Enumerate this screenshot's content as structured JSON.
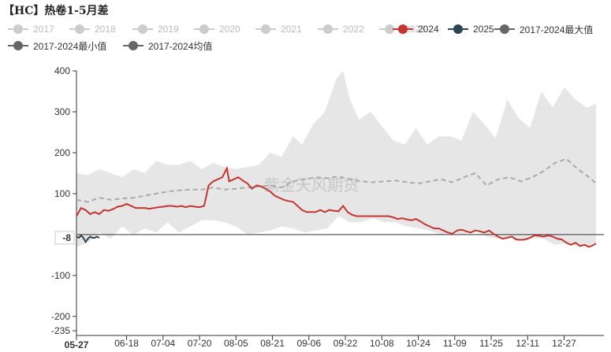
{
  "title": "【HC】热卷1-5月差",
  "watermark": "紫金天风期货",
  "legend": [
    {
      "label": "2017",
      "color": "#cccccc",
      "type": "dot-line",
      "active": false
    },
    {
      "label": "2018",
      "color": "#cccccc",
      "type": "dot-line",
      "active": false
    },
    {
      "label": "2019",
      "color": "#cccccc",
      "type": "dot-line",
      "active": false
    },
    {
      "label": "2020",
      "color": "#cccccc",
      "type": "dot-line",
      "active": false
    },
    {
      "label": "2021",
      "color": "#cccccc",
      "type": "dot-line",
      "active": false
    },
    {
      "label": "2022",
      "color": "#cccccc",
      "type": "dot-line",
      "active": false
    },
    {
      "label": "2023",
      "color": "#cccccc",
      "type": "dot-line",
      "active": false
    },
    {
      "label": "2024",
      "color": "#c23531",
      "type": "dot-line",
      "active": true
    },
    {
      "label": "2025",
      "color": "#2f4554",
      "type": "dot-line",
      "active": true
    },
    {
      "label": "2017-2024最大值",
      "color": "#666666",
      "type": "dot-line",
      "active": true
    },
    {
      "label": "2017-2024最小值",
      "color": "#666666",
      "type": "dot-line",
      "active": true
    },
    {
      "label": "2017-2024均值",
      "color": "#666666",
      "type": "dot-line",
      "active": true
    }
  ],
  "chart_data": {
    "type": "line",
    "ylim": [
      -235,
      400
    ],
    "y_ticks": [
      400,
      300,
      200,
      100,
      -100,
      -200,
      -235
    ],
    "x_tick_labels": [
      "05-27",
      "06-18",
      "07-04",
      "07-20",
      "08-05",
      "08-21",
      "09-06",
      "09-22",
      "10-08",
      "10-24",
      "11-09",
      "11-25",
      "12-11",
      "12-27"
    ],
    "current_label": "-8",
    "current_value": -8,
    "x_start": "05-27",
    "x_end": "01-10",
    "colors": {
      "y2024": "#c23531",
      "y2025": "#2f4554",
      "mean": "#aaaaaa",
      "band": "#e6e6e6",
      "zero": "#333333"
    },
    "series": [
      {
        "name": "2024",
        "points": [
          [
            "05-27",
            45
          ],
          [
            "05-29",
            65
          ],
          [
            "05-31",
            60
          ],
          [
            "06-02",
            50
          ],
          [
            "06-04",
            55
          ],
          [
            "06-06",
            50
          ],
          [
            "06-08",
            60
          ],
          [
            "06-10",
            58
          ],
          [
            "06-12",
            62
          ],
          [
            "06-14",
            68
          ],
          [
            "06-16",
            70
          ],
          [
            "06-18",
            75
          ],
          [
            "06-20",
            70
          ],
          [
            "06-22",
            65
          ],
          [
            "06-24",
            65
          ],
          [
            "06-26",
            65
          ],
          [
            "06-28",
            63
          ],
          [
            "06-30",
            65
          ],
          [
            "07-02",
            67
          ],
          [
            "07-04",
            68
          ],
          [
            "07-06",
            70
          ],
          [
            "07-08",
            70
          ],
          [
            "07-10",
            68
          ],
          [
            "07-12",
            70
          ],
          [
            "07-14",
            67
          ],
          [
            "07-16",
            70
          ],
          [
            "07-18",
            68
          ],
          [
            "07-20",
            67
          ],
          [
            "07-22",
            70
          ],
          [
            "07-24",
            120
          ],
          [
            "07-26",
            130
          ],
          [
            "07-28",
            135
          ],
          [
            "07-30",
            140
          ],
          [
            "08-01",
            162
          ],
          [
            "08-02",
            130
          ],
          [
            "08-04",
            135
          ],
          [
            "08-06",
            140
          ],
          [
            "08-08",
            132
          ],
          [
            "08-10",
            125
          ],
          [
            "08-12",
            112
          ],
          [
            "08-14",
            120
          ],
          [
            "08-16",
            118
          ],
          [
            "08-18",
            112
          ],
          [
            "08-20",
            105
          ],
          [
            "08-22",
            95
          ],
          [
            "08-24",
            90
          ],
          [
            "08-26",
            85
          ],
          [
            "08-28",
            82
          ],
          [
            "08-30",
            80
          ],
          [
            "09-01",
            70
          ],
          [
            "09-03",
            60
          ],
          [
            "09-05",
            55
          ],
          [
            "09-07",
            55
          ],
          [
            "09-09",
            55
          ],
          [
            "09-11",
            60
          ],
          [
            "09-13",
            55
          ],
          [
            "09-15",
            60
          ],
          [
            "09-17",
            58
          ],
          [
            "09-19",
            57
          ],
          [
            "09-21",
            70
          ],
          [
            "09-23",
            55
          ],
          [
            "09-25",
            48
          ],
          [
            "09-27",
            45
          ],
          [
            "09-29",
            45
          ],
          [
            "10-01",
            45
          ],
          [
            "10-03",
            45
          ],
          [
            "10-05",
            45
          ],
          [
            "10-07",
            45
          ],
          [
            "10-09",
            45
          ],
          [
            "10-11",
            45
          ],
          [
            "10-13",
            42
          ],
          [
            "10-15",
            38
          ],
          [
            "10-17",
            40
          ],
          [
            "10-19",
            37
          ],
          [
            "10-21",
            35
          ],
          [
            "10-23",
            38
          ],
          [
            "10-25",
            32
          ],
          [
            "10-27",
            25
          ],
          [
            "10-29",
            20
          ],
          [
            "10-31",
            15
          ],
          [
            "11-02",
            15
          ],
          [
            "11-04",
            10
          ],
          [
            "11-06",
            5
          ],
          [
            "11-08",
            2
          ],
          [
            "11-10",
            10
          ],
          [
            "11-12",
            12
          ],
          [
            "11-14",
            8
          ],
          [
            "11-16",
            5
          ],
          [
            "11-18",
            10
          ],
          [
            "11-20",
            8
          ],
          [
            "11-22",
            5
          ],
          [
            "11-24",
            10
          ],
          [
            "11-26",
            2
          ],
          [
            "11-28",
            -5
          ],
          [
            "11-30",
            -10
          ],
          [
            "12-02",
            -8
          ],
          [
            "12-04",
            -5
          ],
          [
            "12-06",
            -12
          ],
          [
            "12-08",
            -13
          ],
          [
            "12-10",
            -12
          ],
          [
            "12-12",
            -8
          ],
          [
            "12-14",
            -2
          ],
          [
            "12-16",
            -3
          ],
          [
            "12-18",
            -5
          ],
          [
            "12-20",
            -2
          ],
          [
            "12-22",
            -5
          ],
          [
            "12-24",
            -10
          ],
          [
            "12-26",
            -12
          ],
          [
            "12-28",
            -20
          ],
          [
            "12-30",
            -25
          ],
          [
            "01-01",
            -20
          ],
          [
            "01-03",
            -28
          ],
          [
            "01-05",
            -25
          ],
          [
            "01-07",
            -30
          ],
          [
            "01-09",
            -25
          ],
          [
            "01-10",
            -22
          ]
        ]
      },
      {
        "name": "2025",
        "points": [
          [
            "05-27",
            -5
          ],
          [
            "05-28",
            -8
          ],
          [
            "05-29",
            -2
          ],
          [
            "05-30",
            -8
          ],
          [
            "05-31",
            -18
          ],
          [
            "06-01",
            -10
          ],
          [
            "06-02",
            -5
          ],
          [
            "06-03",
            -8
          ],
          [
            "06-04",
            -8
          ],
          [
            "06-05",
            -5
          ],
          [
            "06-06",
            -8
          ]
        ]
      },
      {
        "name": "2017-2024最大值",
        "points": [
          [
            "05-27",
            150
          ],
          [
            "06-01",
            145
          ],
          [
            "06-06",
            160
          ],
          [
            "06-11",
            150
          ],
          [
            "06-16",
            140
          ],
          [
            "06-21",
            160
          ],
          [
            "06-26",
            150
          ],
          [
            "07-01",
            180
          ],
          [
            "07-06",
            170
          ],
          [
            "07-11",
            170
          ],
          [
            "07-16",
            180
          ],
          [
            "07-21",
            160
          ],
          [
            "07-26",
            175
          ],
          [
            "07-31",
            165
          ],
          [
            "08-05",
            160
          ],
          [
            "08-10",
            165
          ],
          [
            "08-15",
            170
          ],
          [
            "08-20",
            200
          ],
          [
            "08-25",
            190
          ],
          [
            "08-30",
            240
          ],
          [
            "09-03",
            220
          ],
          [
            "09-08",
            270
          ],
          [
            "09-13",
            300
          ],
          [
            "09-18",
            380
          ],
          [
            "09-21",
            400
          ],
          [
            "09-24",
            330
          ],
          [
            "09-28",
            280
          ],
          [
            "10-03",
            300
          ],
          [
            "10-08",
            265
          ],
          [
            "10-13",
            230
          ],
          [
            "10-18",
            220
          ],
          [
            "10-23",
            260
          ],
          [
            "10-28",
            220
          ],
          [
            "11-02",
            240
          ],
          [
            "11-07",
            240
          ],
          [
            "11-12",
            230
          ],
          [
            "11-17",
            300
          ],
          [
            "11-22",
            270
          ],
          [
            "11-27",
            235
          ],
          [
            "12-02",
            330
          ],
          [
            "12-07",
            285
          ],
          [
            "12-12",
            260
          ],
          [
            "12-17",
            350
          ],
          [
            "12-22",
            310
          ],
          [
            "12-27",
            360
          ],
          [
            "01-01",
            330
          ],
          [
            "01-06",
            310
          ],
          [
            "01-10",
            320
          ]
        ]
      },
      {
        "name": "2017-2024最小值",
        "points": [
          [
            "05-27",
            -30
          ],
          [
            "06-01",
            -20
          ],
          [
            "06-06",
            5
          ],
          [
            "06-11",
            -10
          ],
          [
            "06-16",
            20
          ],
          [
            "06-21",
            0
          ],
          [
            "06-26",
            15
          ],
          [
            "07-01",
            5
          ],
          [
            "07-06",
            30
          ],
          [
            "07-11",
            5
          ],
          [
            "07-16",
            20
          ],
          [
            "07-21",
            35
          ],
          [
            "07-26",
            35
          ],
          [
            "07-31",
            30
          ],
          [
            "08-05",
            20
          ],
          [
            "08-10",
            0
          ],
          [
            "08-15",
            5
          ],
          [
            "08-20",
            10
          ],
          [
            "08-25",
            20
          ],
          [
            "08-30",
            15
          ],
          [
            "09-04",
            5
          ],
          [
            "09-09",
            10
          ],
          [
            "09-14",
            15
          ],
          [
            "09-19",
            45
          ],
          [
            "09-24",
            30
          ],
          [
            "09-29",
            30
          ],
          [
            "10-04",
            40
          ],
          [
            "10-09",
            30
          ],
          [
            "10-14",
            30
          ],
          [
            "10-19",
            20
          ],
          [
            "10-24",
            15
          ],
          [
            "10-29",
            10
          ],
          [
            "11-03",
            0
          ],
          [
            "11-08",
            5
          ],
          [
            "11-13",
            0
          ],
          [
            "11-18",
            10
          ],
          [
            "11-23",
            -5
          ],
          [
            "11-28",
            -10
          ],
          [
            "12-03",
            -5
          ],
          [
            "12-08",
            -15
          ],
          [
            "12-13",
            -10
          ],
          [
            "12-18",
            -10
          ],
          [
            "12-23",
            -25
          ],
          [
            "12-28",
            -20
          ],
          [
            "01-02",
            -30
          ],
          [
            "01-07",
            -25
          ],
          [
            "01-10",
            -20
          ]
        ]
      },
      {
        "name": "2017-2024均值",
        "points": [
          [
            "05-27",
            85
          ],
          [
            "06-01",
            80
          ],
          [
            "06-06",
            90
          ],
          [
            "06-11",
            85
          ],
          [
            "06-16",
            88
          ],
          [
            "06-21",
            90
          ],
          [
            "06-26",
            95
          ],
          [
            "07-01",
            100
          ],
          [
            "07-06",
            105
          ],
          [
            "07-11",
            108
          ],
          [
            "07-16",
            110
          ],
          [
            "07-21",
            110
          ],
          [
            "07-26",
            115
          ],
          [
            "07-31",
            110
          ],
          [
            "08-05",
            112
          ],
          [
            "08-10",
            115
          ],
          [
            "08-15",
            118
          ],
          [
            "08-20",
            120
          ],
          [
            "08-25",
            115
          ],
          [
            "08-30",
            130
          ],
          [
            "09-04",
            135
          ],
          [
            "09-09",
            140
          ],
          [
            "09-14",
            138
          ],
          [
            "09-19",
            142
          ],
          [
            "09-24",
            135
          ],
          [
            "09-29",
            130
          ],
          [
            "10-04",
            128
          ],
          [
            "10-09",
            130
          ],
          [
            "10-14",
            132
          ],
          [
            "10-19",
            128
          ],
          [
            "10-24",
            125
          ],
          [
            "10-29",
            130
          ],
          [
            "11-03",
            135
          ],
          [
            "11-08",
            128
          ],
          [
            "11-13",
            140
          ],
          [
            "11-18",
            150
          ],
          [
            "11-23",
            120
          ],
          [
            "11-28",
            135
          ],
          [
            "12-03",
            140
          ],
          [
            "12-08",
            130
          ],
          [
            "12-13",
            140
          ],
          [
            "12-18",
            155
          ],
          [
            "12-23",
            175
          ],
          [
            "12-28",
            185
          ],
          [
            "01-02",
            160
          ],
          [
            "01-07",
            140
          ],
          [
            "01-10",
            125
          ]
        ]
      }
    ]
  }
}
